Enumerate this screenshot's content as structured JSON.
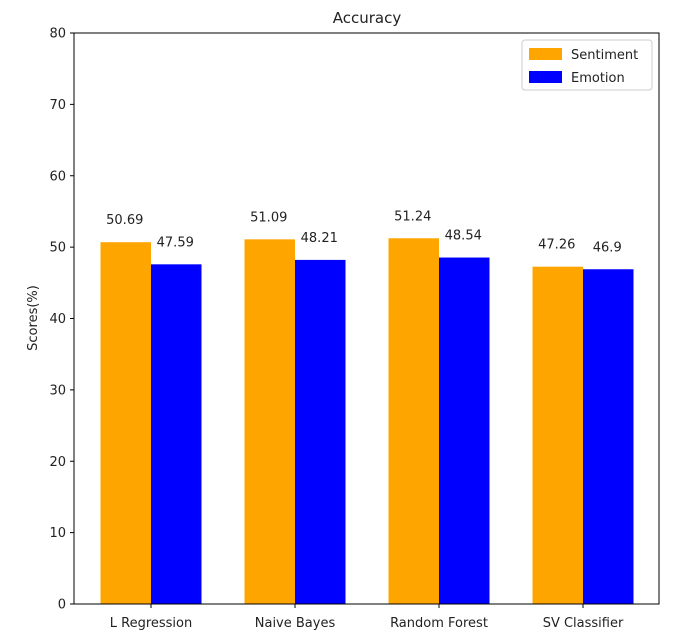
{
  "chart_data": {
    "type": "bar",
    "title": "Accuracy",
    "xlabel": "",
    "ylabel": "Scores(%)",
    "ylim": [
      0,
      80
    ],
    "yticks": [
      0,
      10,
      20,
      30,
      40,
      50,
      60,
      70,
      80
    ],
    "categories": [
      "L Regression",
      "Naive Bayes",
      "Random Forest",
      "SV Classifier"
    ],
    "series": [
      {
        "name": "Sentiment",
        "color": "#FFA500",
        "values": [
          50.69,
          51.09,
          51.24,
          47.26
        ],
        "labels": [
          "50.69",
          "51.09",
          "51.24",
          "47.26"
        ]
      },
      {
        "name": "Emotion",
        "color": "#0000FF",
        "values": [
          47.59,
          48.21,
          48.54,
          46.9
        ],
        "labels": [
          "47.59",
          "48.21",
          "48.54",
          "46.9"
        ]
      }
    ],
    "grid": false,
    "legend_position": "top-right"
  }
}
